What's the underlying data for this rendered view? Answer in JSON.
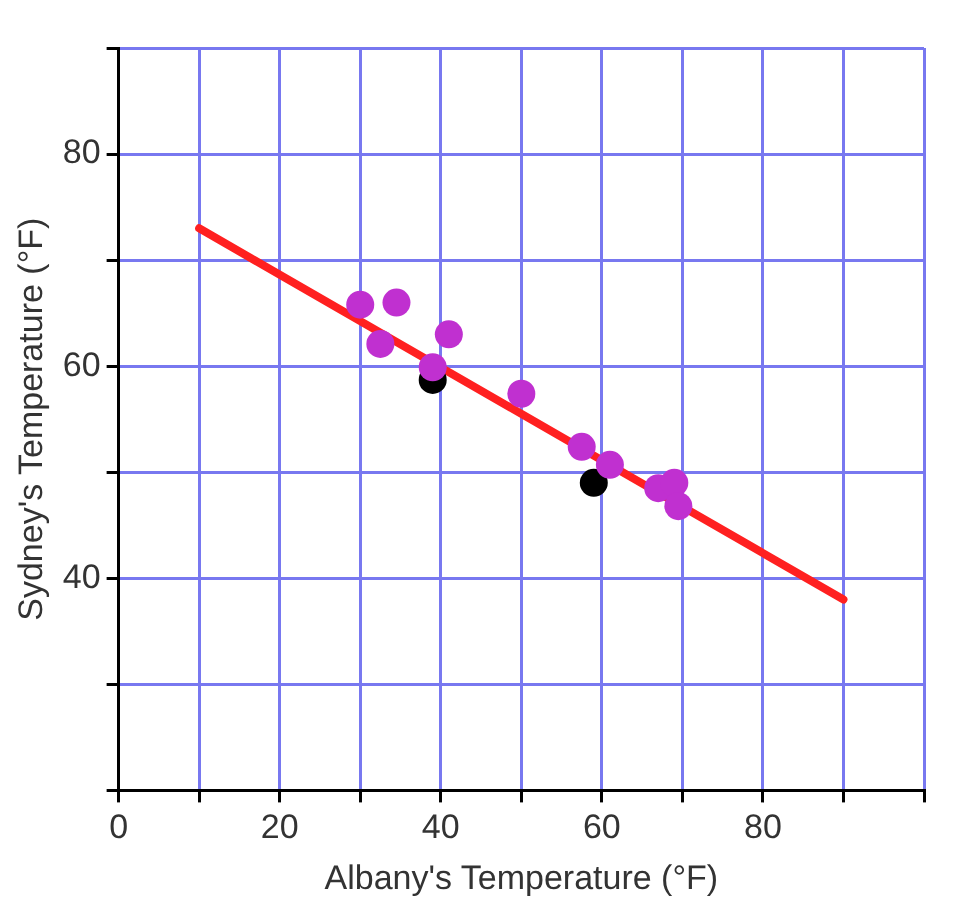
{
  "chart_data": {
    "type": "scatter",
    "xlabel": "Albany's Temperature (°F)",
    "ylabel": "Sydney's Temperature (°F)",
    "xlim": [
      0,
      100
    ],
    "ylim": [
      20,
      90
    ],
    "xticks": [
      0,
      {
        "value": 10,
        "label": null
      },
      20,
      {
        "value": 30,
        "label": null
      },
      40,
      {
        "value": 50,
        "label": null
      },
      60,
      {
        "value": 70,
        "label": null
      },
      80,
      {
        "value": 90,
        "label": null
      },
      {
        "value": 100,
        "label": null
      }
    ],
    "yticks": [
      {
        "value": 20,
        "label": null
      },
      {
        "value": 30,
        "label": null
      },
      40,
      {
        "value": 50,
        "label": null
      },
      60,
      {
        "value": 70,
        "label": null
      },
      80,
      {
        "value": 90,
        "label": null
      }
    ],
    "grid": true,
    "marker": "circle",
    "series": [
      {
        "type": "scatter",
        "color": "#c030d0",
        "x": [
          30,
          34.5,
          32.5,
          41,
          39,
          50,
          57.5,
          61,
          67,
          69,
          69.5
        ],
        "values": [
          65.8,
          66,
          62.1,
          63,
          59.9,
          57.4,
          52.4,
          50.7,
          48.5,
          49,
          46.8
        ]
      },
      {
        "type": "scatter",
        "color": "#000000",
        "x": [
          39,
          59
        ],
        "values": [
          58.7,
          49
        ]
      },
      {
        "type": "line",
        "color": "#ff2020",
        "marker": "none",
        "x": [
          10,
          90
        ],
        "values": [
          73,
          38
        ]
      }
    ]
  }
}
